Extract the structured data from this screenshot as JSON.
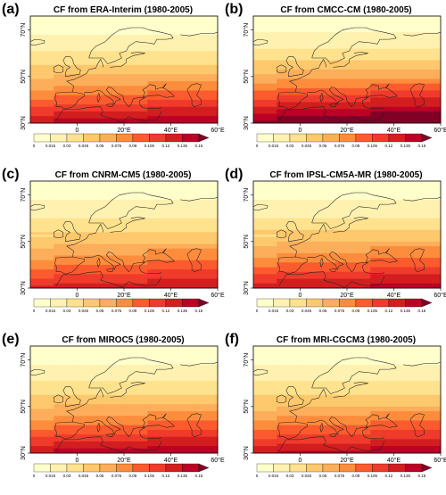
{
  "map_style": {
    "gradient_lat_top": 76,
    "gradient_lat_bottom": 30,
    "lon_range": [
      -20,
      60
    ],
    "lat_range": [
      30,
      76
    ]
  },
  "colorbar": {
    "levels": [
      "0",
      "0.015",
      "0.03",
      "0.045",
      "0.06",
      "0.075",
      "0.09",
      "0.105",
      "0.12",
      "0.135",
      "0.15"
    ],
    "colors": [
      "#ffffcc",
      "#fff1b0",
      "#ffe28e",
      "#fec86c",
      "#fdae5a",
      "#fd8d3c",
      "#fc5b2e",
      "#ef3b2c",
      "#d31e20",
      "#bd0026",
      "#800026"
    ]
  },
  "axes": {
    "lon_ticks": [
      {
        "value": 0,
        "label": "0"
      },
      {
        "value": 20,
        "label": "20°E"
      },
      {
        "value": 40,
        "label": "40°E"
      },
      {
        "value": 60,
        "label": "60°E"
      }
    ],
    "lat_ticks": [
      {
        "value": 30,
        "label": "30°N"
      },
      {
        "value": 50,
        "label": "50°N"
      },
      {
        "value": 70,
        "label": "70°N"
      }
    ]
  },
  "panels": [
    {
      "letter": "(a)",
      "title": "CF from ERA-Interim (1980-2005)",
      "intensity": 1.0,
      "max_class": 9
    },
    {
      "letter": "(b)",
      "title": "CF from CMCC-CM (1980-2005)",
      "intensity": 1.05,
      "max_class": 10
    },
    {
      "letter": "(c)",
      "title": "CF from CNRM-CM5 (1980-2005)",
      "intensity": 0.9,
      "max_class": 9
    },
    {
      "letter": "(d)",
      "title": "CF from IPSL-CM5A-MR (1980-2005)",
      "intensity": 0.95,
      "max_class": 9
    },
    {
      "letter": "(e)",
      "title": "CF from MIROC5 (1980-2005)",
      "intensity": 1.0,
      "max_class": 9
    },
    {
      "letter": "(f)",
      "title": "CF from MRI-CGCM3 (1980-2005)",
      "intensity": 0.98,
      "max_class": 9
    }
  ]
}
